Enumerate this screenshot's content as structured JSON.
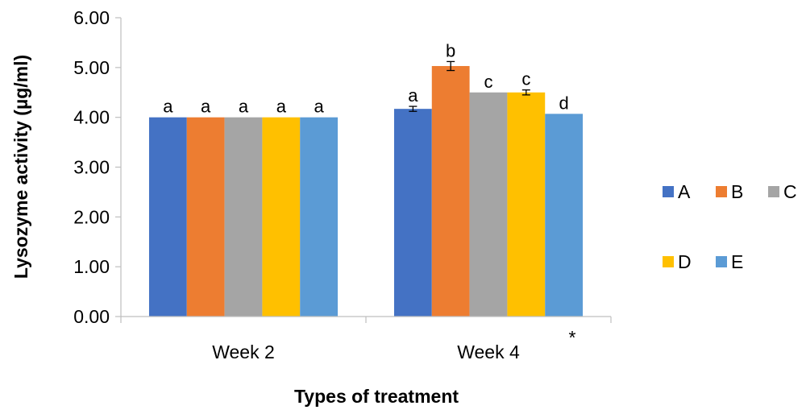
{
  "chart_data": {
    "type": "bar",
    "title": "",
    "xlabel": "Types of treatment",
    "ylabel": "Lysozyme activity (µg/ml)",
    "ylim": [
      0,
      6
    ],
    "yticks": [
      "0.00",
      "1.00",
      "2.00",
      "3.00",
      "4.00",
      "5.00",
      "6.00"
    ],
    "categories": [
      "Week 2",
      "Week 4"
    ],
    "category_marks": [
      "",
      "*"
    ],
    "grid": false,
    "legend_position": "right",
    "series": [
      {
        "name": "A",
        "color": "#4472C4",
        "values": [
          4.0,
          4.17
        ],
        "errors": [
          0,
          0.05
        ],
        "labels": [
          "a",
          "a"
        ]
      },
      {
        "name": "B",
        "color": "#ED7D31",
        "values": [
          4.0,
          5.03
        ],
        "errors": [
          0,
          0.09
        ],
        "labels": [
          "a",
          "b"
        ]
      },
      {
        "name": "C",
        "color": "#A5A5A5",
        "values": [
          4.0,
          4.5
        ],
        "errors": [
          0,
          0
        ],
        "labels": [
          "a",
          "c"
        ]
      },
      {
        "name": "D",
        "color": "#FFC000",
        "values": [
          4.0,
          4.5
        ],
        "errors": [
          0,
          0.05
        ],
        "labels": [
          "a",
          "c"
        ]
      },
      {
        "name": "E",
        "color": "#5B9BD5",
        "values": [
          4.0,
          4.07
        ],
        "errors": [
          0,
          0
        ],
        "labels": [
          "a",
          "d"
        ]
      }
    ]
  }
}
